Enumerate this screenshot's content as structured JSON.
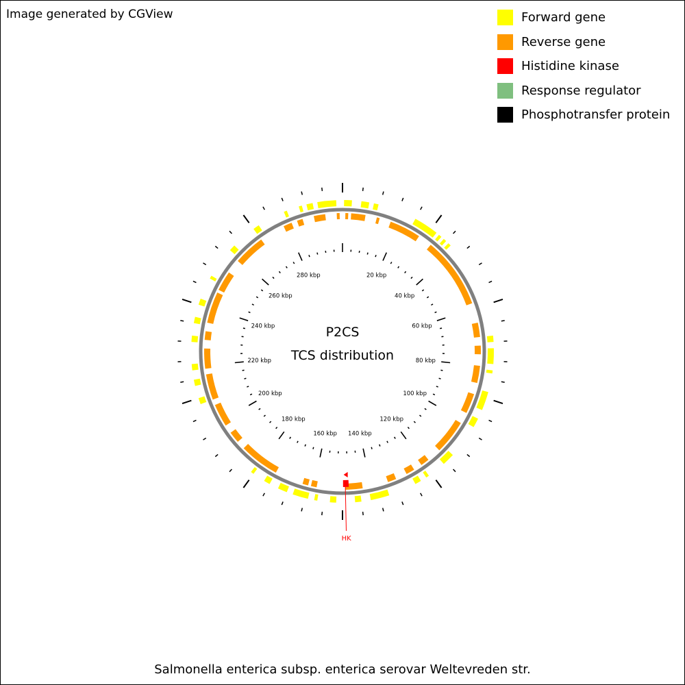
{
  "credit": "Image generated by CGView",
  "legend": [
    {
      "label": "Forward gene",
      "color": "#ffff00",
      "icon": "swatch"
    },
    {
      "label": "Reverse gene",
      "color": "#ff9900",
      "icon": "swatch"
    },
    {
      "label": "Histidine kinase",
      "color": "#ff0000",
      "icon": "swatch"
    },
    {
      "label": "Response regulator",
      "color": "#7fbf7f",
      "icon": "swatch"
    },
    {
      "label": "Phosphotransfer protein",
      "color": "#000000",
      "icon": "swatch"
    }
  ],
  "center": {
    "line1": "P2CS",
    "line2": "TCS distribution"
  },
  "caption": "Salmonella enterica subsp. enterica serovar Weltevreden str.",
  "map": {
    "sequence_length_kbp": 300,
    "tick_labels": [
      "20 kbp",
      "40 kbp",
      "60 kbp",
      "80 kbp",
      "100 kbp",
      "120 kbp",
      "140 kbp",
      "160 kbp",
      "180 kbp",
      "200 kbp",
      "220 kbp",
      "240 kbp",
      "260 kbp",
      "280 kbp"
    ],
    "tick_kbp": [
      20,
      40,
      60,
      80,
      100,
      120,
      140,
      160,
      180,
      200,
      220,
      240,
      260,
      280
    ],
    "backbone_color": "#808080",
    "forward_genes_kbp": [
      [
        0.5,
        3
      ],
      [
        -8,
        -2
      ],
      [
        -11.5,
        -9.5
      ],
      [
        -14,
        -13
      ],
      [
        6,
        8.5
      ],
      [
        10,
        11.5
      ],
      [
        24,
        32
      ],
      [
        33,
        34
      ],
      [
        35,
        36
      ],
      [
        37,
        38
      ],
      [
        70,
        72
      ],
      [
        74,
        79
      ],
      [
        81,
        82
      ],
      [
        88,
        94
      ],
      [
        97,
        100
      ],
      [
        111,
        115
      ],
      [
        121,
        122
      ],
      [
        124,
        126
      ],
      [
        135,
        141
      ],
      [
        144,
        146
      ],
      [
        152,
        154
      ],
      [
        158,
        159
      ],
      [
        161,
        166
      ],
      [
        168,
        171
      ],
      [
        174,
        176
      ],
      [
        180,
        181
      ],
      [
        208,
        210
      ],
      [
        214,
        216
      ],
      [
        219,
        221
      ],
      [
        228,
        230
      ],
      [
        234,
        236
      ],
      [
        240,
        242
      ],
      [
        249,
        250
      ],
      [
        260,
        262
      ],
      [
        270,
        272
      ],
      [
        281,
        282
      ]
    ],
    "reverse_genes_kbp": [
      [
        1,
        2
      ],
      [
        3,
        8
      ],
      [
        12,
        13
      ],
      [
        17,
        28
      ],
      [
        33,
        58
      ],
      [
        65,
        70
      ],
      [
        73,
        76
      ],
      [
        80,
        86
      ],
      [
        90,
        97
      ],
      [
        101,
        113
      ],
      [
        118,
        121
      ],
      [
        124,
        127
      ],
      [
        131,
        134
      ],
      [
        143,
        149
      ],
      [
        159,
        161
      ],
      [
        162,
        164
      ],
      [
        174,
        188
      ],
      [
        191,
        195
      ],
      [
        198,
        206
      ],
      [
        208,
        217
      ],
      [
        219,
        226
      ],
      [
        229,
        232
      ],
      [
        235,
        246
      ],
      [
        247,
        254
      ],
      [
        259,
        270
      ],
      [
        279,
        282
      ],
      [
        284,
        286
      ],
      [
        290,
        294
      ],
      [
        -2,
        -1
      ]
    ],
    "annotations": [
      {
        "label": "HK",
        "kbp": 149,
        "type": "Histidine kinase",
        "color": "#ff0000"
      }
    ]
  }
}
